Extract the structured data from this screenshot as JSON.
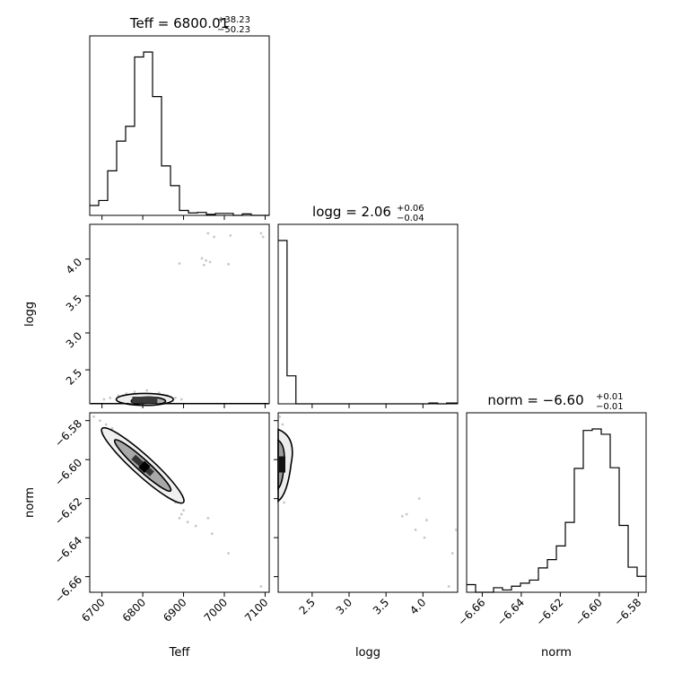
{
  "chart_data": {
    "type": "corner",
    "parameters": [
      "Teff",
      "logg",
      "norm"
    ],
    "titles": [
      {
        "param": "Teff",
        "label": "Teff = ",
        "median": "6800.01",
        "plus": "+38.23",
        "minus": "−50.23"
      },
      {
        "param": "logg",
        "label": "logg = ",
        "median": "2.06",
        "plus": "+0.06",
        "minus": "−0.04"
      },
      {
        "param": "norm",
        "label": "norm = ",
        "median": "−6.60",
        "plus": "+0.01",
        "minus": "−0.01"
      }
    ],
    "axis_labels": {
      "x": [
        "Teff",
        "logg",
        "norm"
      ],
      "y": [
        "logg",
        "norm"
      ]
    },
    "ranges": {
      "Teff": [
        6670,
        7110
      ],
      "logg": [
        2.04,
        4.47
      ],
      "norm": [
        -6.668,
        -6.576
      ]
    },
    "ticks": {
      "Teff": [
        6700,
        6800,
        6900,
        7000,
        7100
      ],
      "Teff_labels": [
        "6700",
        "6800",
        "6900",
        "7000",
        "7100"
      ],
      "logg": [
        2.5,
        3.0,
        3.5,
        4.0
      ],
      "logg_labels": [
        "2.5",
        "3.0",
        "3.5",
        "4.0"
      ],
      "norm": [
        -6.66,
        -6.64,
        -6.62,
        -6.6,
        -6.58
      ],
      "norm_labels": [
        "−6.66",
        "−6.64",
        "−6.62",
        "−6.60",
        "−6.58"
      ]
    },
    "histograms": {
      "Teff": {
        "bin_edges": [
          6670,
          6692,
          6714,
          6736,
          6758,
          6780,
          6802,
          6824,
          6846,
          6868,
          6890,
          6912,
          6934,
          6956,
          6978,
          7000,
          7022,
          7044,
          7066,
          7088,
          7110
        ],
        "counts": [
          2,
          3,
          9,
          15,
          18,
          32,
          33,
          24,
          10,
          6,
          1,
          0.5,
          0.6,
          0.2,
          0.4,
          0.4,
          0,
          0.3,
          0,
          0
        ]
      },
      "logg": {
        "bin_edges": [
          2.04,
          2.16,
          2.28,
          2.4,
          2.52,
          2.64,
          2.76,
          2.88,
          3.0,
          3.12,
          3.24,
          3.36,
          3.48,
          3.6,
          3.72,
          3.84,
          3.96,
          4.08,
          4.2,
          4.32,
          4.47
        ],
        "counts": [
          105,
          18,
          0,
          0,
          0,
          0,
          0,
          0,
          0,
          0,
          0,
          0,
          0,
          0,
          0,
          0,
          0,
          0.5,
          0,
          0.5
        ]
      },
      "norm": {
        "bin_edges": [
          -6.668,
          -6.6634,
          -6.6588,
          -6.6542,
          -6.6496,
          -6.645,
          -6.6404,
          -6.6358,
          -6.6312,
          -6.6266,
          -6.622,
          -6.6174,
          -6.6128,
          -6.6082,
          -6.6036,
          -6.599,
          -6.5944,
          -6.5898,
          -6.5852,
          -6.5806,
          -6.576
        ],
        "counts": [
          1,
          0,
          0,
          0.6,
          0.3,
          0.8,
          1.2,
          1.6,
          3.2,
          4.3,
          6.1,
          9.2,
          16.3,
          21.3,
          21.5,
          20.8,
          16.4,
          8.8,
          3.3,
          2.1
        ]
      }
    },
    "scatter": {
      "Teff_logg": [
        [
          6960,
          4.35
        ],
        [
          6975,
          4.3
        ],
        [
          7015,
          4.32
        ],
        [
          7090,
          4.35
        ],
        [
          7095,
          4.3
        ],
        [
          6945,
          4.01
        ],
        [
          6955,
          3.98
        ],
        [
          6965,
          3.96
        ],
        [
          6950,
          3.92
        ],
        [
          6890,
          3.94
        ],
        [
          7010,
          3.93
        ],
        [
          6705,
          2.1
        ],
        [
          6720,
          2.12
        ],
        [
          6740,
          2.15
        ],
        [
          6760,
          2.18
        ],
        [
          6780,
          2.2
        ],
        [
          6810,
          2.22
        ],
        [
          6840,
          2.19
        ],
        [
          6860,
          2.15
        ],
        [
          6880,
          2.12
        ],
        [
          6895,
          2.1
        ],
        [
          6770,
          2.08
        ],
        [
          6830,
          2.09
        ]
      ],
      "Teff_norm": [
        [
          6680,
          -6.578
        ],
        [
          6695,
          -6.58
        ],
        [
          6710,
          -6.582
        ],
        [
          6725,
          -6.584
        ],
        [
          6740,
          -6.587
        ],
        [
          6890,
          -6.63
        ],
        [
          6895,
          -6.628
        ],
        [
          6910,
          -6.632
        ],
        [
          6930,
          -6.634
        ],
        [
          6960,
          -6.63
        ],
        [
          6970,
          -6.638
        ],
        [
          7010,
          -6.648
        ],
        [
          7090,
          -6.665
        ],
        [
          6900,
          -6.626
        ],
        [
          6880,
          -6.622
        ]
      ],
      "logg_norm": [
        [
          2.06,
          -6.578
        ],
        [
          2.1,
          -6.582
        ],
        [
          2.08,
          -6.618
        ],
        [
          2.12,
          -6.622
        ],
        [
          3.72,
          -6.629
        ],
        [
          3.78,
          -6.628
        ],
        [
          3.95,
          -6.62
        ],
        [
          4.05,
          -6.631
        ],
        [
          3.9,
          -6.636
        ],
        [
          4.02,
          -6.64
        ],
        [
          4.35,
          -6.665
        ],
        [
          4.45,
          -6.636
        ],
        [
          4.4,
          -6.648
        ]
      ]
    },
    "density_cores": {
      "Teff_logg": {
        "center": [
          6805,
          2.1
        ],
        "rx": 70,
        "ry": 0.08
      },
      "Teff_norm": {
        "center": [
          6800,
          -6.603
        ],
        "angle_slope": -0.00019,
        "half_len": 95,
        "half_width": 0.006
      },
      "logg_norm": {
        "center": [
          2.07,
          -6.602
        ],
        "rx": 0.06,
        "ry": 0.012
      }
    }
  }
}
